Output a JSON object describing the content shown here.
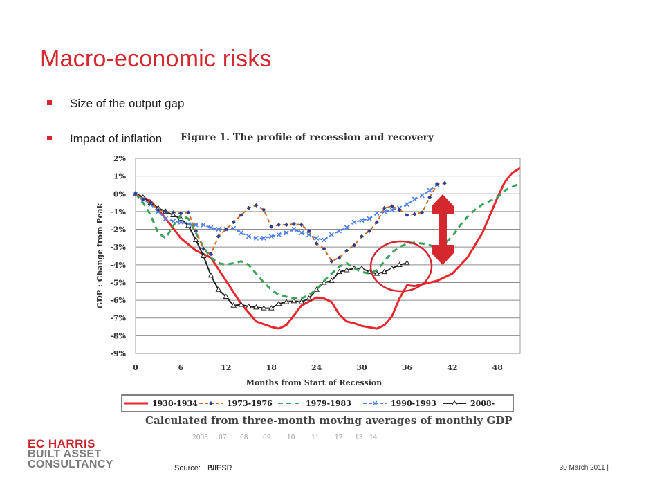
{
  "slide": {
    "title": "Macro-economic risks",
    "bullets": [
      "Size of the output gap",
      "Impact of inflation"
    ],
    "logo": [
      "EC HARRIS",
      "BUILT ASSET",
      "CONSULTANCY"
    ],
    "source_label": "Source:",
    "source_values": [
      "BIS",
      "NIESR"
    ],
    "date": "30 March 2011 |"
  },
  "colors": {
    "accent": "#d4272e",
    "s1930": "#e8262b",
    "s1973": "#2f3f8f",
    "s1973_dash": "#d2691e",
    "s1979": "#3aa35a",
    "s1990": "#4a7ee8",
    "s2008": "#222222"
  },
  "chart_data": {
    "type": "line",
    "title": "Figure 1. The profile of recession and recovery",
    "subtitle": "Calculated from three-month moving averages of monthly GDP",
    "xlabel": "Months from Start of Recession",
    "ylabel": "GDP : Change from Peak",
    "xlim": [
      0,
      51
    ],
    "ylim": [
      -9,
      2
    ],
    "xticks": [
      0,
      6,
      12,
      18,
      24,
      30,
      36,
      42,
      48
    ],
    "yticks": [
      "2%",
      "1%",
      "0%",
      "-1%",
      "-2%",
      "-3%",
      "-4%",
      "-5%",
      "-6%",
      "-7%",
      "-8%",
      "-9%"
    ],
    "grid": true,
    "legend_position": "bottom",
    "bottom_axis_ticks": [
      "2008",
      "07",
      "08",
      "09",
      "10",
      "11",
      "12",
      "13",
      "14"
    ],
    "series": [
      {
        "name": "1930-1934",
        "style": "solid",
        "color_key": "s1930",
        "x": [
          0,
          2,
          4,
          6,
          8,
          10,
          12,
          14,
          16,
          18,
          19,
          20,
          22,
          24,
          25,
          26,
          27,
          28,
          29,
          30,
          32,
          33,
          34,
          35,
          36,
          37,
          38,
          40,
          42,
          44,
          46,
          47,
          48,
          49,
          50,
          51
        ],
        "y": [
          0,
          -0.4,
          -1.4,
          -2.5,
          -3.2,
          -3.6,
          -4.9,
          -6.2,
          -7.2,
          -7.5,
          -7.6,
          -7.4,
          -6.3,
          -5.85,
          -5.9,
          -6.1,
          -6.8,
          -7.2,
          -7.3,
          -7.45,
          -7.6,
          -7.4,
          -6.9,
          -5.9,
          -5.15,
          -5.2,
          -5.1,
          -4.9,
          -4.5,
          -3.6,
          -2.2,
          -1.2,
          -0.2,
          0.7,
          1.2,
          1.45
        ]
      },
      {
        "name": "1973-1976",
        "style": "dashed",
        "color_key": "s1973",
        "x": [
          0,
          1,
          2,
          3,
          4,
          5,
          6,
          7,
          8,
          9,
          10,
          11,
          12,
          13,
          14,
          15,
          16,
          17,
          18,
          19,
          20,
          21,
          22,
          23,
          24,
          25,
          26,
          27,
          28,
          29,
          30,
          31,
          32,
          33,
          34,
          35,
          36,
          37,
          38,
          39,
          40,
          41
        ],
        "y": [
          0,
          -0.3,
          -0.5,
          -0.9,
          -1.0,
          -1.05,
          -1.1,
          -1.05,
          -2.1,
          -3.1,
          -3.4,
          -2.4,
          -2.0,
          -1.6,
          -1.2,
          -0.8,
          -0.65,
          -0.9,
          -1.85,
          -1.75,
          -1.75,
          -1.7,
          -1.75,
          -2.1,
          -2.8,
          -3.1,
          -3.8,
          -3.6,
          -3.2,
          -2.9,
          -2.4,
          -2.1,
          -1.6,
          -0.8,
          -0.7,
          -0.9,
          -1.2,
          -1.15,
          -1.05,
          -0.2,
          0.55,
          0.6
        ]
      },
      {
        "name": "1979-1983",
        "style": "dashed",
        "color_key": "s1979",
        "x": [
          0,
          1,
          2,
          3,
          4,
          5,
          6,
          7,
          8,
          9,
          10,
          11,
          12,
          13,
          14,
          15,
          16,
          17,
          18,
          19,
          20,
          21,
          22,
          23,
          24,
          25,
          26,
          27,
          28,
          29,
          30,
          31,
          32,
          33,
          34,
          35,
          36,
          37,
          38,
          39,
          40,
          41,
          42,
          43,
          44,
          45,
          46,
          47,
          48,
          49,
          50,
          51
        ],
        "y": [
          0,
          -0.5,
          -1.2,
          -2.2,
          -2.5,
          -1.8,
          -1.2,
          -1.4,
          -2.2,
          -3.0,
          -3.6,
          -3.9,
          -4.0,
          -3.9,
          -3.8,
          -4.0,
          -4.5,
          -5.0,
          -5.4,
          -5.7,
          -5.8,
          -5.9,
          -5.9,
          -5.7,
          -5.4,
          -4.9,
          -4.5,
          -4.1,
          -3.9,
          -4.2,
          -4.4,
          -4.5,
          -4.3,
          -3.8,
          -3.3,
          -3.0,
          -2.8,
          -2.75,
          -2.8,
          -2.9,
          -3.0,
          -2.8,
          -2.4,
          -1.8,
          -1.3,
          -0.9,
          -0.6,
          -0.4,
          -0.2,
          0.2,
          0.4,
          0.6
        ]
      },
      {
        "name": "1990-1993",
        "style": "dashed",
        "color_key": "s1990",
        "x": [
          0,
          1,
          2,
          3,
          4,
          5,
          6,
          7,
          8,
          9,
          10,
          11,
          12,
          13,
          14,
          15,
          16,
          17,
          18,
          19,
          20,
          21,
          22,
          23,
          24,
          25,
          26,
          27,
          28,
          29,
          30,
          31,
          32,
          33,
          34,
          35,
          36,
          37,
          38,
          39,
          40
        ],
        "y": [
          0,
          -0.3,
          -0.6,
          -1.0,
          -1.4,
          -1.55,
          -1.6,
          -1.7,
          -1.75,
          -1.75,
          -1.9,
          -2.0,
          -2.0,
          -1.95,
          -2.2,
          -2.4,
          -2.5,
          -2.5,
          -2.4,
          -2.3,
          -2.2,
          -2.0,
          -2.2,
          -2.3,
          -2.5,
          -2.6,
          -2.3,
          -2.1,
          -1.9,
          -1.6,
          -1.5,
          -1.4,
          -1.1,
          -1.0,
          -0.9,
          -0.8,
          -0.6,
          -0.3,
          -0.1,
          0.2,
          0.5
        ]
      },
      {
        "name": "2008-",
        "style": "solid",
        "color_key": "s2008",
        "x": [
          0,
          1,
          2,
          3,
          4,
          5,
          6,
          7,
          8,
          9,
          10,
          11,
          12,
          13,
          14,
          15,
          16,
          17,
          18,
          19,
          20,
          21,
          22,
          23,
          24,
          25,
          26,
          27,
          28,
          29,
          30,
          31,
          32,
          33,
          34,
          35,
          36
        ],
        "y": [
          0,
          -0.2,
          -0.5,
          -0.8,
          -1.0,
          -1.2,
          -1.4,
          -1.8,
          -2.6,
          -3.5,
          -4.6,
          -5.4,
          -5.8,
          -6.3,
          -6.25,
          -6.35,
          -6.4,
          -6.45,
          -6.45,
          -6.2,
          -6.1,
          -6.05,
          -6.1,
          -5.9,
          -5.4,
          -5.0,
          -4.9,
          -4.4,
          -4.3,
          -4.2,
          -4.2,
          -4.4,
          -4.5,
          -4.4,
          -4.2,
          -4.0,
          -3.9
        ]
      }
    ],
    "annotations": {
      "circle_label": "",
      "arrow_label": ""
    }
  }
}
